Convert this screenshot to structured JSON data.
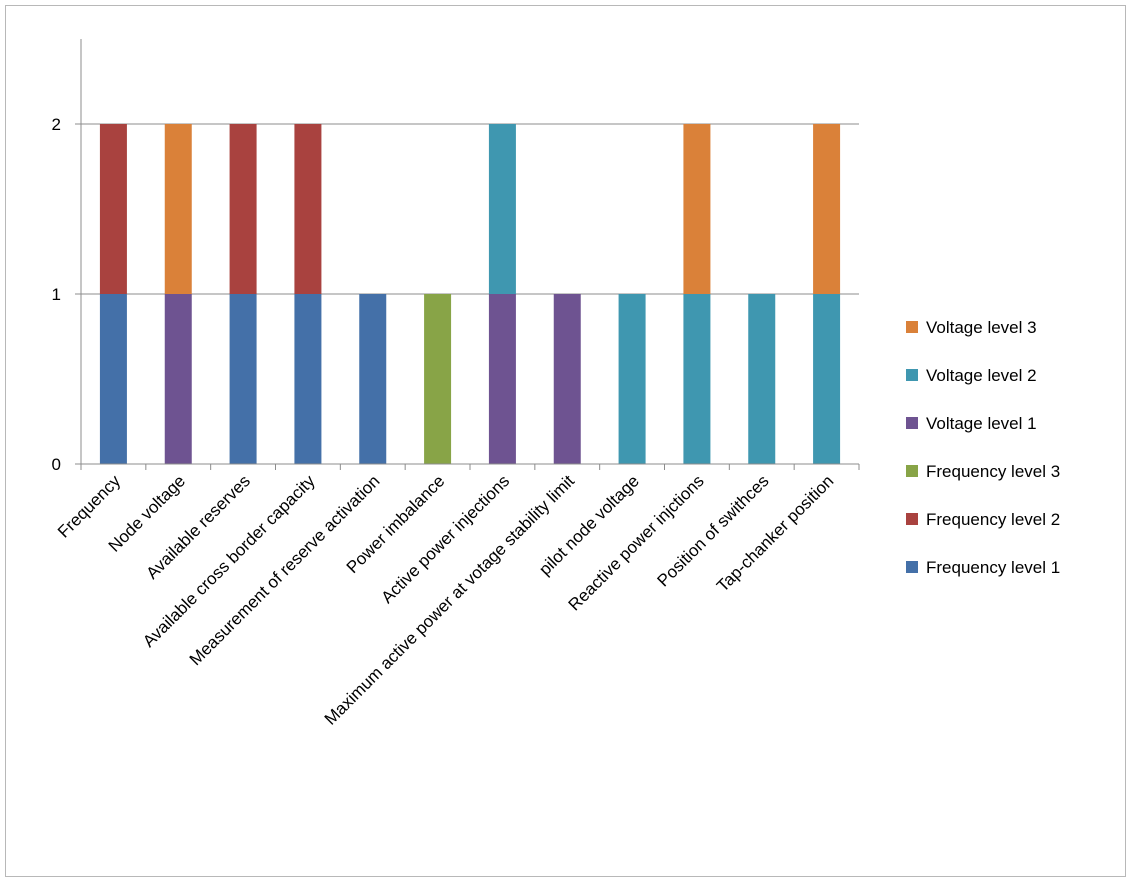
{
  "chart_data": {
    "type": "bar",
    "stacked": true,
    "categories": [
      "Frequency",
      "Node voltage",
      "Available reserves",
      "Available cross border capacity",
      "Measurement of reserve activation",
      "Power imbalance",
      "Active power injections",
      "Maximum active power at votage stability limit",
      "pilot node voltage",
      "Reactive power injctions",
      "Position of swithces",
      "Tap-chanker position"
    ],
    "series": [
      {
        "name": "Frequency level 1",
        "color": "#4470A8",
        "values": [
          1,
          0,
          1,
          1,
          1,
          0,
          0,
          0,
          0,
          0,
          0,
          0
        ]
      },
      {
        "name": "Frequency level 2",
        "color": "#A9423F",
        "values": [
          1,
          0,
          1,
          1,
          0,
          0,
          0,
          0,
          0,
          0,
          0,
          0
        ]
      },
      {
        "name": "Frequency level 3",
        "color": "#88A447",
        "values": [
          0,
          0,
          0,
          0,
          0,
          1,
          0,
          0,
          0,
          0,
          0,
          0
        ]
      },
      {
        "name": "Voltage level 1",
        "color": "#6E5391",
        "values": [
          0,
          1,
          0,
          0,
          0,
          0,
          1,
          1,
          0,
          0,
          0,
          0
        ]
      },
      {
        "name": "Voltage level 2",
        "color": "#3F97B0",
        "values": [
          0,
          0,
          0,
          0,
          0,
          0,
          1,
          0,
          1,
          1,
          1,
          1
        ]
      },
      {
        "name": "Voltage level 3",
        "color": "#DA8139",
        "values": [
          0,
          1,
          0,
          0,
          0,
          0,
          0,
          0,
          0,
          1,
          0,
          1
        ]
      }
    ],
    "yticks": [
      "0",
      "1",
      "2"
    ],
    "ylim": [
      0,
      2.5
    ],
    "grid": true,
    "legend_position": "right",
    "legend_order": [
      "Voltage level 3",
      "Voltage level 2",
      "Voltage level 1",
      "Frequency level 3",
      "Frequency level 2",
      "Frequency level 1"
    ]
  }
}
